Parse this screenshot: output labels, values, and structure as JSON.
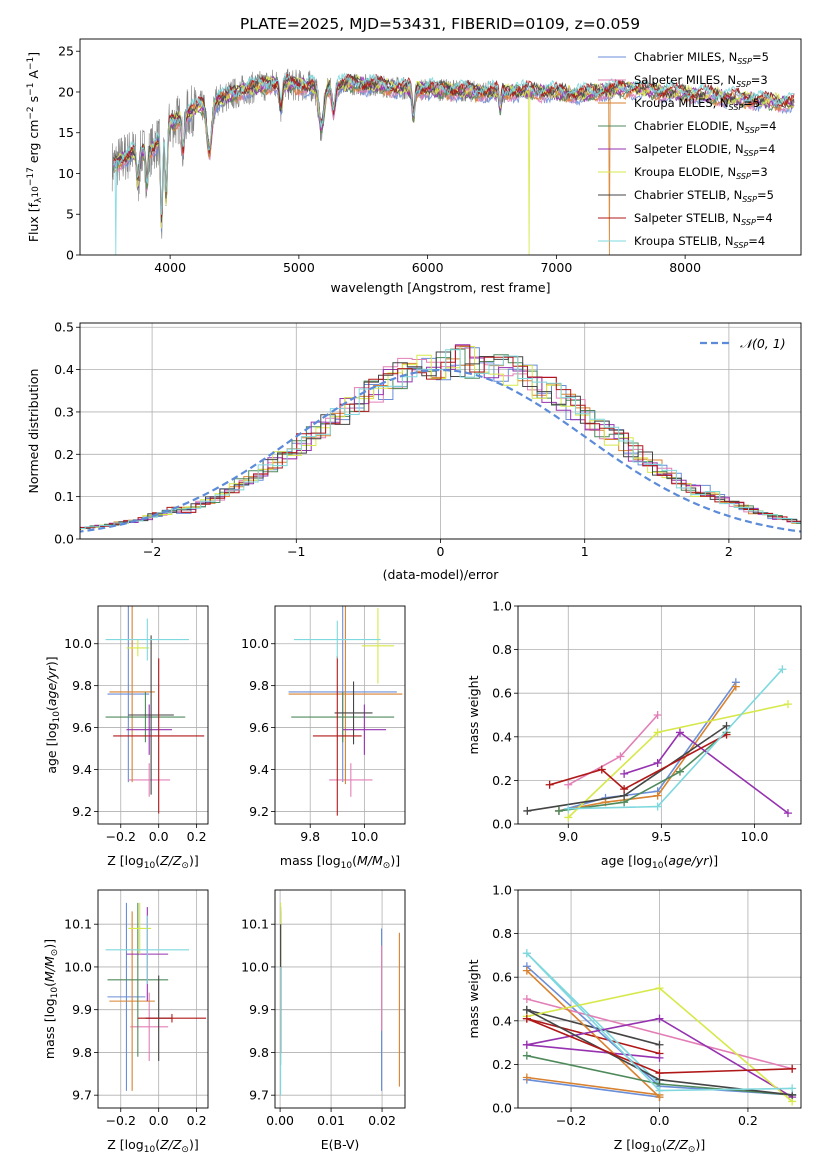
{
  "figure": {
    "title": "PLATE=2025, MJD=53431, FIBERID=0109, z=0.059"
  },
  "series_legend": [
    {
      "name": "Chabrier MILES, N$_{SSP}$=5",
      "label": "Chabrier MILES, N",
      "sub": "SSP",
      "tail": "=5",
      "color": "#6a8ed8"
    },
    {
      "name": "Salpeter MILES, N$_{SSP}$=3",
      "label": "Salpeter MILES, N",
      "sub": "SSP",
      "tail": "=3",
      "color": "#e27fb6"
    },
    {
      "name": "Kroupa MILES, N$_{SSP}$=5",
      "label": "Kroupa MILES, N",
      "sub": "SSP",
      "tail": "=5",
      "color": "#d8822f"
    },
    {
      "name": "Chabrier ELODIE, N$_{SSP}$=4",
      "label": "Chabrier ELODIE, N",
      "sub": "SSP",
      "tail": "=4",
      "color": "#4f8a5c"
    },
    {
      "name": "Salpeter ELODIE, N$_{SSP}$=4",
      "label": "Salpeter ELODIE, N",
      "sub": "SSP",
      "tail": "=4",
      "color": "#9632b0"
    },
    {
      "name": "Kroupa ELODIE, N$_{SSP}$=3",
      "label": "Kroupa ELODIE, N",
      "sub": "SSP",
      "tail": "=3",
      "color": "#d7e84a"
    },
    {
      "name": "Chabrier STELIB, N$_{SSP}$=5",
      "label": "Chabrier STELIB, N",
      "sub": "SSP",
      "tail": "=5",
      "color": "#454545"
    },
    {
      "name": "Salpeter STELIB, N$_{SSP}$=4",
      "label": "Salpeter STELIB, N",
      "sub": "SSP",
      "tail": "=4",
      "color": "#b01818"
    },
    {
      "name": "Kroupa STELIB, N$_{SSP}$=4",
      "label": "Kroupa STELIB, N",
      "sub": "SSP",
      "tail": "=4",
      "color": "#7fd8de"
    }
  ],
  "chart_data": [
    {
      "id": "spectrum",
      "type": "line",
      "xlabel": "wavelength [Angstrom, rest frame]",
      "ylabel": "Flux [f_λ 10^-17 erg cm^-2 s^-1 A^-1]",
      "ylabel_parts": [
        "Flux [f",
        "λ",
        "10",
        "−17",
        " erg cm",
        "−2",
        " s",
        "−1",
        " A",
        "−1",
        "]"
      ],
      "xlim": [
        3300,
        8900
      ],
      "ylim": [
        0,
        26.5
      ],
      "xticks": [
        4000,
        5000,
        6000,
        7000,
        8000
      ],
      "yticks": [
        0,
        5,
        10,
        15,
        20,
        25
      ],
      "data_color": "#808080",
      "data_range": [
        3550,
        7450
      ],
      "continuum": {
        "x": [
          3550,
          3700,
          3850,
          4000,
          4200,
          4400,
          4600,
          4800,
          5000,
          5200,
          5400,
          5600,
          5800,
          6000,
          6200,
          6400,
          6600,
          6800,
          7000,
          7200,
          7400,
          7600,
          7800,
          8000,
          8200,
          8400,
          8600,
          8850
        ],
        "y": [
          11.0,
          12.5,
          12.8,
          16.0,
          18.0,
          19.2,
          20.4,
          21.0,
          20.8,
          20.6,
          21.0,
          20.8,
          20.5,
          20.3,
          20.2,
          20.0,
          20.0,
          20.1,
          19.9,
          19.7,
          20.2,
          20.4,
          20.0,
          19.8,
          19.6,
          19.2,
          18.9,
          18.6
        ]
      },
      "features": [
        {
          "x": 3934,
          "depth": 11,
          "width": 8
        },
        {
          "x": 3969,
          "depth": 9,
          "width": 8
        },
        {
          "x": 4101,
          "depth": 4,
          "width": 10
        },
        {
          "x": 4304,
          "depth": 6,
          "width": 18
        },
        {
          "x": 4861,
          "depth": 3,
          "width": 10
        },
        {
          "x": 5175,
          "depth": 5,
          "width": 20
        },
        {
          "x": 5270,
          "depth": 3,
          "width": 12
        },
        {
          "x": 5890,
          "depth": 3.5,
          "width": 10
        },
        {
          "x": 6563,
          "depth": 2,
          "width": 8
        },
        {
          "x": 3820,
          "depth": 4,
          "width": 8
        },
        {
          "x": 3750,
          "depth": 4,
          "width": 10
        }
      ],
      "model_dropouts": [
        {
          "series": 5,
          "x": 6790,
          "to": 0
        },
        {
          "series": 2,
          "x": 7410,
          "to": 0
        },
        {
          "series": 8,
          "x": 3580,
          "to": 0
        }
      ],
      "legend_position": "top-right"
    },
    {
      "id": "residuals",
      "type": "step",
      "xlabel": "(data-model)/error",
      "ylabel": "Normed distribution",
      "xlim": [
        -2.5,
        2.5
      ],
      "ylim": [
        0,
        0.51
      ],
      "xticks": [
        -2,
        -1,
        0,
        1,
        2
      ],
      "yticks": [
        0.0,
        0.1,
        0.2,
        0.3,
        0.4,
        0.5
      ],
      "grid": true,
      "bin_width": 0.1,
      "normal_curve": {
        "label": "𝒩(0, 1)",
        "mu": 0,
        "sigma": 1,
        "color": "#5b8bd9"
      },
      "legend_position": "top-right"
    },
    {
      "id": "age-vs-Z",
      "type": "errorbar",
      "xlabel_parts": [
        "Z [log",
        "10",
        "(",
        "Z/Z",
        "⊙",
        ")]"
      ],
      "ylabel_parts": [
        "age  [log",
        "10",
        "(",
        "age/yr",
        ")]"
      ],
      "xlim": [
        -0.32,
        0.26
      ],
      "ylim": [
        9.14,
        10.18
      ],
      "xticks": [
        -0.2,
        0.0,
        0.2
      ],
      "yticks": [
        9.2,
        9.4,
        9.6,
        9.8,
        10.0
      ],
      "grid": true,
      "points": [
        {
          "s": 0,
          "x": -0.16,
          "xe": 0.11,
          "y": 9.76,
          "ye": 0.42
        },
        {
          "s": 1,
          "x": -0.05,
          "xe": 0.11,
          "y": 9.35,
          "ye": 0.08
        },
        {
          "s": 2,
          "x": -0.14,
          "xe": 0.12,
          "y": 9.77,
          "ye": 0.43
        },
        {
          "s": 3,
          "x": -0.07,
          "xe": 0.21,
          "y": 9.65,
          "ye": 0.12
        },
        {
          "s": 4,
          "x": -0.05,
          "xe": 0.12,
          "y": 9.59,
          "ye": 0.12
        },
        {
          "s": 5,
          "x": -0.11,
          "xe": 0.06,
          "y": 9.98,
          "ye": 0.04
        },
        {
          "s": 6,
          "x": -0.04,
          "xe": 0.12,
          "y": 9.66,
          "ye": 0.38
        },
        {
          "s": 7,
          "x": 0.0,
          "xe": 0.24,
          "y": 9.56,
          "ye": 0.37
        },
        {
          "s": 8,
          "x": -0.06,
          "xe": 0.22,
          "y": 10.02,
          "ye": 0.1
        }
      ]
    },
    {
      "id": "age-vs-mass",
      "type": "errorbar",
      "xlabel_parts": [
        "mass [log",
        "10",
        "(",
        "M/M",
        "⊙",
        ")]"
      ],
      "ylabel_parts": [],
      "xlim": [
        9.67,
        10.15
      ],
      "ylim": [
        9.14,
        10.18
      ],
      "xticks": [
        9.8,
        10.0
      ],
      "yticks": [
        9.2,
        9.4,
        9.6,
        9.8,
        10.0
      ],
      "grid": true,
      "points": [
        {
          "s": 0,
          "x": 9.92,
          "xe": 0.2,
          "y": 9.77,
          "ye": 0.43
        },
        {
          "s": 1,
          "x": 9.95,
          "xe": 0.08,
          "y": 9.35,
          "ye": 0.08
        },
        {
          "s": 2,
          "x": 9.93,
          "xe": 0.21,
          "y": 9.76,
          "ye": 0.43
        },
        {
          "s": 3,
          "x": 9.92,
          "xe": 0.19,
          "y": 9.65,
          "ye": 0.12
        },
        {
          "s": 4,
          "x": 10.0,
          "xe": 0.08,
          "y": 9.59,
          "ye": 0.12
        },
        {
          "s": 5,
          "x": 10.05,
          "xe": 0.06,
          "y": 9.99,
          "ye": 0.18
        },
        {
          "s": 6,
          "x": 9.96,
          "xe": 0.07,
          "y": 9.67,
          "ye": 0.15
        },
        {
          "s": 7,
          "x": 9.9,
          "xe": 0.09,
          "y": 9.56,
          "ye": 0.38
        },
        {
          "s": 8,
          "x": 9.9,
          "xe": 0.16,
          "y": 10.02,
          "ye": 0.09
        }
      ]
    },
    {
      "id": "mass-weight-vs-age",
      "type": "line",
      "xlabel_parts": [
        "age  [log",
        "10",
        "(",
        "age/yr",
        ")]"
      ],
      "ylabel": "mass weight",
      "xlim": [
        8.73,
        10.25
      ],
      "ylim": [
        0,
        1.0
      ],
      "xticks": [
        9.0,
        9.5,
        10.0
      ],
      "yticks": [
        0.0,
        0.2,
        0.4,
        0.6,
        0.8,
        1.0
      ],
      "grid": true,
      "series": [
        {
          "s": 0,
          "x": [
            8.95,
            9.2,
            9.48,
            9.9
          ],
          "y": [
            0.06,
            0.12,
            0.15,
            0.65
          ]
        },
        {
          "s": 1,
          "x": [
            9.0,
            9.28,
            9.48
          ],
          "y": [
            0.18,
            0.31,
            0.5
          ]
        },
        {
          "s": 2,
          "x": [
            8.95,
            9.2,
            9.48,
            9.9
          ],
          "y": [
            0.06,
            0.1,
            0.13,
            0.63
          ]
        },
        {
          "s": 3,
          "x": [
            8.95,
            9.3,
            9.6,
            9.85
          ],
          "y": [
            0.06,
            0.1,
            0.24,
            0.42
          ]
        },
        {
          "s": 4,
          "x": [
            9.3,
            9.48,
            9.6,
            10.18
          ],
          "y": [
            0.23,
            0.28,
            0.42,
            0.05
          ]
        },
        {
          "s": 5,
          "x": [
            9.0,
            9.48,
            10.18
          ],
          "y": [
            0.03,
            0.42,
            0.55
          ]
        },
        {
          "s": 6,
          "x": [
            8.78,
            9.3,
            9.85
          ],
          "y": [
            0.06,
            0.13,
            0.45
          ]
        },
        {
          "s": 7,
          "x": [
            8.9,
            9.18,
            9.3,
            9.85
          ],
          "y": [
            0.18,
            0.25,
            0.16,
            0.41
          ]
        },
        {
          "s": 8,
          "x": [
            9.0,
            9.48,
            10.15
          ],
          "y": [
            0.07,
            0.08,
            0.71
          ]
        }
      ]
    },
    {
      "id": "mass-vs-Z",
      "type": "errorbar",
      "xlabel_parts": [
        "Z [log",
        "10",
        "(",
        "Z/Z",
        "⊙",
        ")]"
      ],
      "ylabel_parts": [
        "mass [log",
        "10",
        "(",
        "M/M",
        "⊙",
        ")]"
      ],
      "xlim": [
        -0.32,
        0.26
      ],
      "ylim": [
        9.67,
        10.18
      ],
      "xticks": [
        -0.2,
        0.0,
        0.2
      ],
      "yticks": [
        9.7,
        9.8,
        9.9,
        10.0,
        10.1
      ],
      "grid": true,
      "points": [
        {
          "s": 0,
          "x": -0.17,
          "xe": 0.1,
          "y": 9.93,
          "ye": 0.22
        },
        {
          "s": 1,
          "x": -0.05,
          "xe": 0.1,
          "y": 9.86,
          "ye": 0.08
        },
        {
          "s": 2,
          "x": -0.14,
          "xe": 0.12,
          "y": 9.92,
          "ye": 0.21
        },
        {
          "s": 3,
          "x": -0.11,
          "xe": 0.16,
          "y": 9.97,
          "ye": 0.18
        },
        {
          "s": 4,
          "x": -0.06,
          "xe": 0.11,
          "y": 10.03,
          "ye": 0.11
        },
        {
          "s": 5,
          "x": -0.1,
          "xe": 0.06,
          "y": 10.09,
          "ye": 0.06
        },
        {
          "s": 6,
          "x": 0.0,
          "xe": 0.07,
          "y": 9.88,
          "ye": 0.1
        },
        {
          "s": 7,
          "x": 0.07,
          "xe": 0.18,
          "y": 9.88,
          "ye": 0.01
        },
        {
          "s": 8,
          "x": -0.06,
          "xe": 0.22,
          "y": 10.04,
          "ye": 0.08
        }
      ]
    },
    {
      "id": "mass-vs-ebv",
      "type": "errorbar",
      "xlabel": "E(B-V)",
      "ylabel_parts": [],
      "xlim": [
        -0.001,
        0.0245
      ],
      "ylim": [
        9.67,
        10.18
      ],
      "xticks": [
        0.0,
        0.01,
        0.02
      ],
      "yticks": [
        9.7,
        9.8,
        9.9,
        10.0,
        10.1
      ],
      "grid": true,
      "points": [
        {
          "s": 0,
          "x": 0.0199,
          "xe": 0,
          "y": 9.9,
          "ye": 0.19
        },
        {
          "s": 1,
          "x": 0.0199,
          "xe": 0,
          "y": 9.95,
          "ye": 0.1
        },
        {
          "s": 2,
          "x": 0.0234,
          "xe": 0,
          "y": 9.9,
          "ye": 0.18
        },
        {
          "s": 3,
          "x": 0.0001,
          "xe": 0,
          "y": 9.95,
          "ye": 0.18
        },
        {
          "s": 4,
          "x": 0.0001,
          "xe": 0,
          "y": 10.02,
          "ye": 0.12
        },
        {
          "s": 5,
          "x": 0.0001,
          "xe": 0,
          "y": 10.0,
          "ye": 0.15
        },
        {
          "s": 6,
          "x": 0.0001,
          "xe": 0,
          "y": 9.95,
          "ye": 0.15
        },
        {
          "s": 7,
          "x": 0.0001,
          "xe": 0,
          "y": 9.9,
          "ye": 0.1
        },
        {
          "s": 8,
          "x": 0.0001,
          "xe": 0,
          "y": 9.85,
          "ye": 0.15
        }
      ]
    },
    {
      "id": "mass-weight-vs-Z",
      "type": "line",
      "xlabel_parts": [
        "Z [log",
        "10",
        "(",
        "Z/Z",
        "⊙",
        ")]"
      ],
      "ylabel": "mass weight",
      "xlim": [
        -0.32,
        0.32
      ],
      "ylim": [
        0,
        1.0
      ],
      "xticks": [
        -0.2,
        0.0,
        0.2
      ],
      "yticks": [
        0.0,
        0.2,
        0.4,
        0.6,
        0.8,
        1.0
      ],
      "grid": true,
      "series": [
        {
          "s": 0,
          "x": [
            -0.3,
            0.0,
            0.3
          ],
          "y": [
            0.65,
            0.1,
            0.06
          ]
        },
        {
          "s": 1,
          "x": [
            -0.3,
            0.3
          ],
          "y": [
            0.5,
            0.18
          ]
        },
        {
          "s": 2,
          "x": [
            -0.3,
            0.0
          ],
          "y": [
            0.63,
            0.05
          ]
        },
        {
          "s": 3,
          "x": [
            -0.3,
            0.0,
            0.3
          ],
          "y": [
            0.24,
            0.11,
            0.06
          ]
        },
        {
          "s": 4,
          "x": [
            -0.3,
            0.0,
            0.3
          ],
          "y": [
            0.29,
            0.41,
            0.05
          ]
        },
        {
          "s": 5,
          "x": [
            -0.3,
            0.0,
            0.3
          ],
          "y": [
            0.42,
            0.55,
            0.03
          ]
        },
        {
          "s": 6,
          "x": [
            -0.3,
            0.0,
            0.3
          ],
          "y": [
            0.45,
            0.13,
            0.06
          ]
        },
        {
          "s": 7,
          "x": [
            -0.3,
            0.0,
            0.3
          ],
          "y": [
            0.41,
            0.16,
            0.18
          ]
        },
        {
          "s": 8,
          "x": [
            -0.3,
            0.0,
            0.3
          ],
          "y": [
            0.71,
            0.08,
            0.09
          ]
        }
      ],
      "pairs": [
        {
          "s": 0,
          "x": [
            -0.3,
            0.0
          ],
          "y": [
            0.13,
            0.05
          ]
        },
        {
          "s": 2,
          "x": [
            -0.3,
            0.0
          ],
          "y": [
            0.14,
            0.06
          ]
        },
        {
          "s": 7,
          "x": [
            -0.3,
            0.0
          ],
          "y": [
            0.41,
            0.25
          ]
        },
        {
          "s": 4,
          "x": [
            -0.3,
            0.0
          ],
          "y": [
            0.29,
            0.23
          ]
        },
        {
          "s": 6,
          "x": [
            -0.3,
            0.0
          ],
          "y": [
            0.45,
            0.29
          ]
        },
        {
          "s": 8,
          "x": [
            -0.3,
            0.0
          ],
          "y": [
            0.71,
            0.11
          ]
        }
      ]
    }
  ]
}
